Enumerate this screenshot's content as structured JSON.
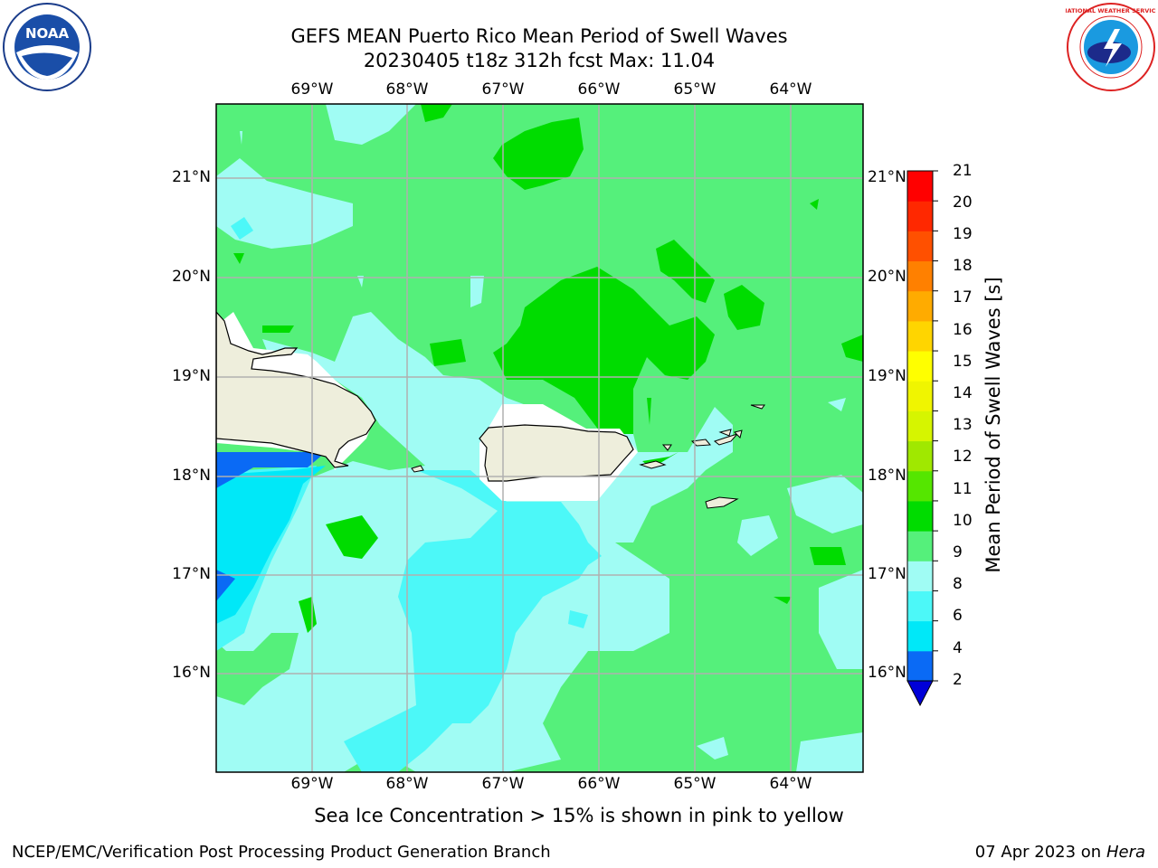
{
  "header": {
    "title_line1": "GEFS MEAN Puerto Rico Mean Period of Swell Waves",
    "title_line2": "20230405 t18z 312h fcst   Max: 11.04"
  },
  "map": {
    "lon_labels": [
      "69°W",
      "68°W",
      "67°W",
      "66°W",
      "65°W",
      "64°W"
    ],
    "lat_labels": [
      "21°N",
      "20°N",
      "19°N",
      "18°N",
      "17°N",
      "16°N"
    ],
    "background_color": "#55f07b",
    "land_color": "#eeeedc"
  },
  "colorbar": {
    "label": "Mean Period of Swell Waves [s]",
    "ticks": [
      "21",
      "20",
      "19",
      "18",
      "17",
      "16",
      "15",
      "14",
      "13",
      "12",
      "11",
      "10",
      "9",
      "8",
      "6",
      "4",
      "2"
    ],
    "colors": [
      "#0000d8",
      "#0a6af5",
      "#00e8f8",
      "#4cf8f8",
      "#a0fcf4",
      "#55f07b",
      "#00dc00",
      "#55e600",
      "#a0e800",
      "#d6f500",
      "#f0f500",
      "#ffff00",
      "#ffd500",
      "#ffab00",
      "#ff8000",
      "#ff5000",
      "#ff2800",
      "#ff0000"
    ]
  },
  "logos": {
    "noaa_text": "NOAA",
    "nws_text": "NATIONAL WEATHER SERVICE"
  },
  "note": "Sea Ice Concentration > 15% is shown in pink to yellow",
  "footer": {
    "left": "NCEP/EMC/Verification Post Processing Product Generation Branch",
    "right_date": "07 Apr 2023 on ",
    "right_host": "Hera"
  }
}
